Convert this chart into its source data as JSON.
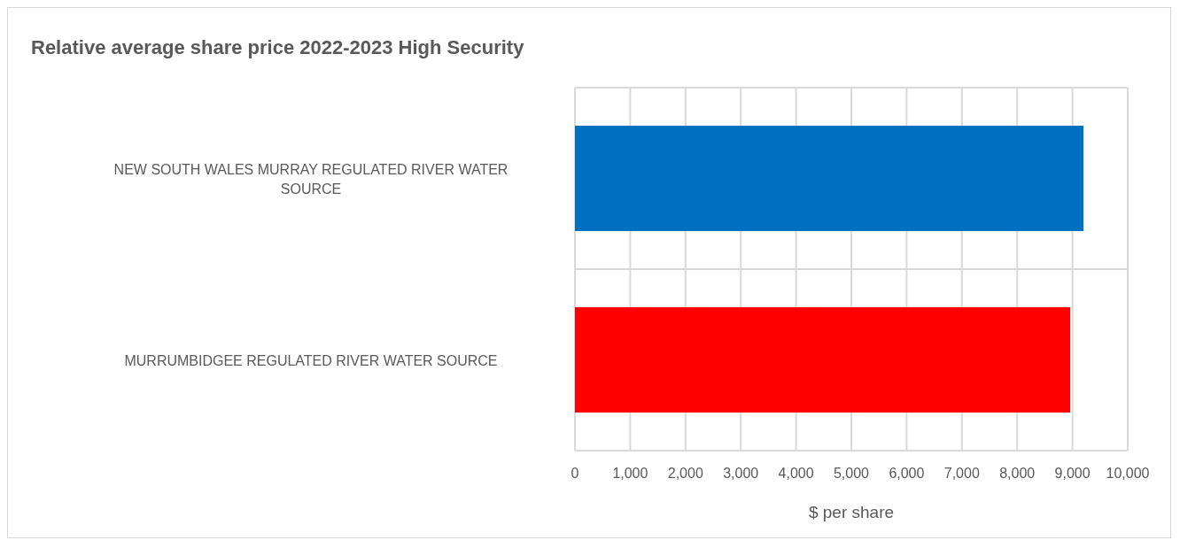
{
  "chart_data": {
    "type": "bar",
    "orientation": "horizontal",
    "title": "Relative average share price 2022-2023 High Security",
    "xlabel": "$ per share",
    "categories": [
      "NEW SOUTH WALES MURRAY REGULATED RIVER WATER SOURCE",
      "MURRUMBIDGEE REGULATED RIVER WATER SOURCE"
    ],
    "values": [
      9200,
      8960
    ],
    "colors": [
      "#0070c0",
      "#ff0000"
    ],
    "xlim": [
      0,
      10000
    ],
    "xticks": [
      {
        "value": 0,
        "label": "0"
      },
      {
        "value": 1000,
        "label": "1,000"
      },
      {
        "value": 2000,
        "label": "2,000"
      },
      {
        "value": 3000,
        "label": "3,000"
      },
      {
        "value": 4000,
        "label": "4,000"
      },
      {
        "value": 5000,
        "label": "5,000"
      },
      {
        "value": 6000,
        "label": "6,000"
      },
      {
        "value": 7000,
        "label": "7,000"
      },
      {
        "value": 8000,
        "label": "8,000"
      },
      {
        "value": 9000,
        "label": "9,000"
      },
      {
        "value": 10000,
        "label": "10,000"
      }
    ],
    "grid": true
  }
}
